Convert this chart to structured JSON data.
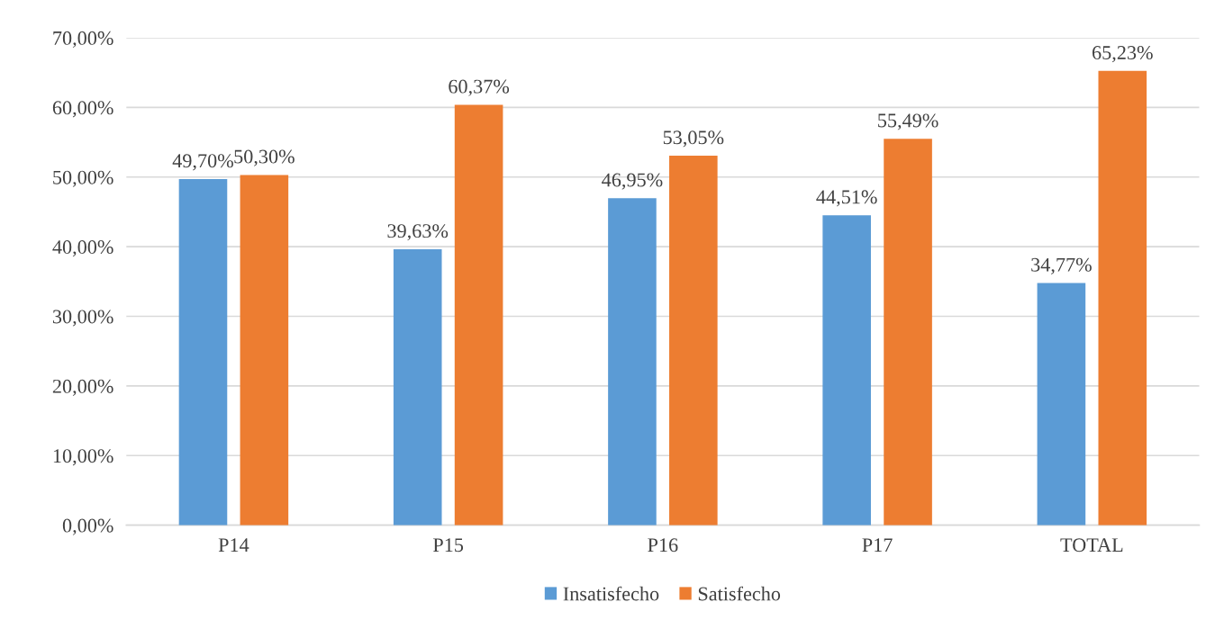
{
  "chart_data": {
    "type": "bar",
    "categories": [
      "P14",
      "P15",
      "P16",
      "P17",
      "TOTAL"
    ],
    "series": [
      {
        "name": "Insatisfecho",
        "color": "#5b9bd5",
        "values": [
          49.7,
          39.63,
          46.95,
          44.51,
          34.77
        ],
        "value_labels": [
          "49,70%",
          "39,63%",
          "46,95%",
          "44,51%",
          "34,77%"
        ]
      },
      {
        "name": "Satisfecho",
        "color": "#ed7d31",
        "values": [
          50.3,
          60.37,
          53.05,
          55.49,
          65.23
        ],
        "value_labels": [
          "50,30%",
          "60,37%",
          "53,05%",
          "55,49%",
          "65,23%"
        ]
      }
    ],
    "ylim": [
      0,
      70
    ],
    "yticks": [
      {
        "value": 0,
        "label": "0,00%"
      },
      {
        "value": 10,
        "label": "10,00%"
      },
      {
        "value": 20,
        "label": "20,00%"
      },
      {
        "value": 30,
        "label": "30,00%"
      },
      {
        "value": 40,
        "label": "40,00%"
      },
      {
        "value": 50,
        "label": "50,00%"
      },
      {
        "value": 60,
        "label": "60,00%"
      },
      {
        "value": 70,
        "label": "70,00%"
      }
    ],
    "grid": "y",
    "legend": "bottom"
  }
}
